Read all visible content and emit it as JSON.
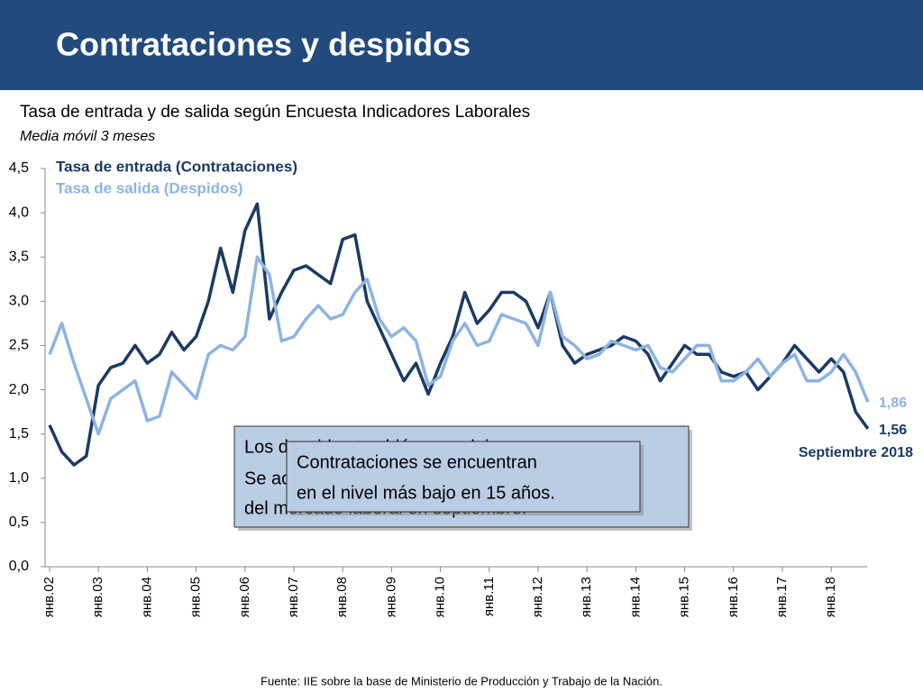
{
  "header": {
    "title": "Contrataciones y despidos"
  },
  "chart_data": {
    "type": "line",
    "title": "Tasa de entrada y de salida según Encuesta Indicadores Laborales",
    "subtitle": "Media móvil 3 meses",
    "categories": [
      "янв.02",
      null,
      null,
      null,
      "янв.03",
      null,
      null,
      null,
      "янв.04",
      null,
      null,
      null,
      "янв.05",
      null,
      null,
      null,
      "янв.06",
      null,
      null,
      null,
      "янв.07",
      null,
      null,
      null,
      "янв.08",
      null,
      null,
      null,
      "янв.09",
      null,
      null,
      null,
      "янв.10",
      null,
      null,
      null,
      "янв.11",
      null,
      null,
      null,
      "янв.12",
      null,
      null,
      null,
      "янв.13",
      null,
      null,
      null,
      "янв.14",
      null,
      null,
      null,
      "янв.15",
      null,
      null,
      null,
      "янв.16",
      null,
      null,
      null,
      "янв.17",
      null,
      null,
      null,
      "янв.18",
      null,
      null,
      null
    ],
    "series": [
      {
        "name": "Tasa de entrada (Contrataciones)",
        "color": "#1b3a63",
        "values": [
          1.6,
          1.3,
          1.15,
          1.25,
          2.05,
          2.25,
          2.3,
          2.5,
          2.3,
          2.4,
          2.65,
          2.45,
          2.6,
          3.0,
          3.6,
          3.1,
          3.8,
          4.1,
          2.8,
          3.1,
          3.35,
          3.4,
          3.3,
          3.2,
          3.7,
          3.75,
          3.0,
          2.7,
          2.4,
          2.1,
          2.3,
          1.95,
          2.3,
          2.6,
          3.1,
          2.75,
          2.9,
          3.1,
          3.1,
          3.0,
          2.7,
          3.1,
          2.5,
          2.3,
          2.4,
          2.45,
          2.5,
          2.6,
          2.55,
          2.4,
          2.1,
          2.3,
          2.5,
          2.4,
          2.4,
          2.2,
          2.15,
          2.2,
          2.0,
          2.15,
          2.3,
          2.5,
          2.35,
          2.2,
          2.35,
          2.2,
          1.75,
          1.56
        ],
        "value_labels": [
          null,
          null,
          null,
          null,
          null,
          null,
          null,
          null,
          null,
          null,
          null,
          null,
          null,
          null,
          null,
          null,
          null,
          null,
          null,
          null,
          null,
          null,
          null,
          null,
          null,
          null,
          null,
          null,
          null,
          null,
          null,
          null,
          null,
          null,
          null,
          null,
          null,
          null,
          null,
          null,
          null,
          null,
          null,
          null,
          null,
          null,
          null,
          null,
          null,
          null,
          null,
          null,
          null,
          null,
          null,
          null,
          null,
          null,
          null,
          null,
          null,
          null,
          null,
          null,
          null,
          null,
          null,
          "1,56"
        ]
      },
      {
        "name": "Tasa de salida (Despidos)",
        "color": "#8db3e2",
        "values": [
          2.4,
          2.75,
          2.3,
          1.9,
          1.5,
          1.9,
          2.0,
          2.1,
          1.65,
          1.7,
          2.2,
          2.05,
          1.9,
          2.4,
          2.5,
          2.45,
          2.6,
          3.5,
          3.3,
          2.55,
          2.6,
          2.8,
          2.95,
          2.8,
          2.85,
          3.1,
          3.25,
          2.8,
          2.6,
          2.7,
          2.55,
          2.05,
          2.15,
          2.55,
          2.75,
          2.5,
          2.55,
          2.85,
          2.8,
          2.75,
          2.5,
          3.1,
          2.6,
          2.5,
          2.35,
          2.4,
          2.55,
          2.5,
          2.45,
          2.5,
          2.25,
          2.2,
          2.35,
          2.5,
          2.5,
          2.1,
          2.1,
          2.2,
          2.35,
          2.15,
          2.3,
          2.4,
          2.1,
          2.1,
          2.2,
          2.4,
          2.2,
          1.86
        ],
        "value_labels": [
          null,
          null,
          null,
          null,
          null,
          null,
          null,
          null,
          null,
          null,
          null,
          null,
          null,
          null,
          null,
          null,
          null,
          null,
          null,
          null,
          null,
          null,
          null,
          null,
          null,
          null,
          null,
          null,
          null,
          null,
          null,
          null,
          null,
          null,
          null,
          null,
          null,
          null,
          null,
          null,
          null,
          null,
          null,
          null,
          null,
          null,
          null,
          null,
          null,
          null,
          null,
          null,
          null,
          null,
          null,
          null,
          null,
          null,
          null,
          null,
          null,
          null,
          null,
          null,
          null,
          null,
          null,
          "1,86"
        ]
      }
    ],
    "ylim": [
      0,
      4.5
    ],
    "yticks": [
      {
        "value": 0,
        "label": "0,0"
      },
      {
        "value": 0.5,
        "label": "0,5"
      },
      {
        "value": 1,
        "label": "1,0"
      },
      {
        "value": 1.5,
        "label": "1,5"
      },
      {
        "value": 2,
        "label": "2,0"
      },
      {
        "value": 2.5,
        "label": "2,5"
      },
      {
        "value": 3,
        "label": "3,0"
      },
      {
        "value": 3.5,
        "label": "3,5"
      },
      {
        "value": 4,
        "label": "4,0"
      },
      {
        "value": 4.5,
        "label": "4,5"
      }
    ],
    "grid": false,
    "annotations": [
      "Septiembre 2018"
    ],
    "source": "Fuente: IIE sobre la base de Ministerio de Producción y Trabajo de la Nación."
  },
  "callouts": {
    "back": [
      "Los despidos también se redujeron.",
      "Se aceleró el deterioro",
      "del mercado laboral en septiembre."
    ],
    "front": [
      "Contrataciones se encuentran",
      "en el nivel más bajo en 15 años."
    ]
  }
}
